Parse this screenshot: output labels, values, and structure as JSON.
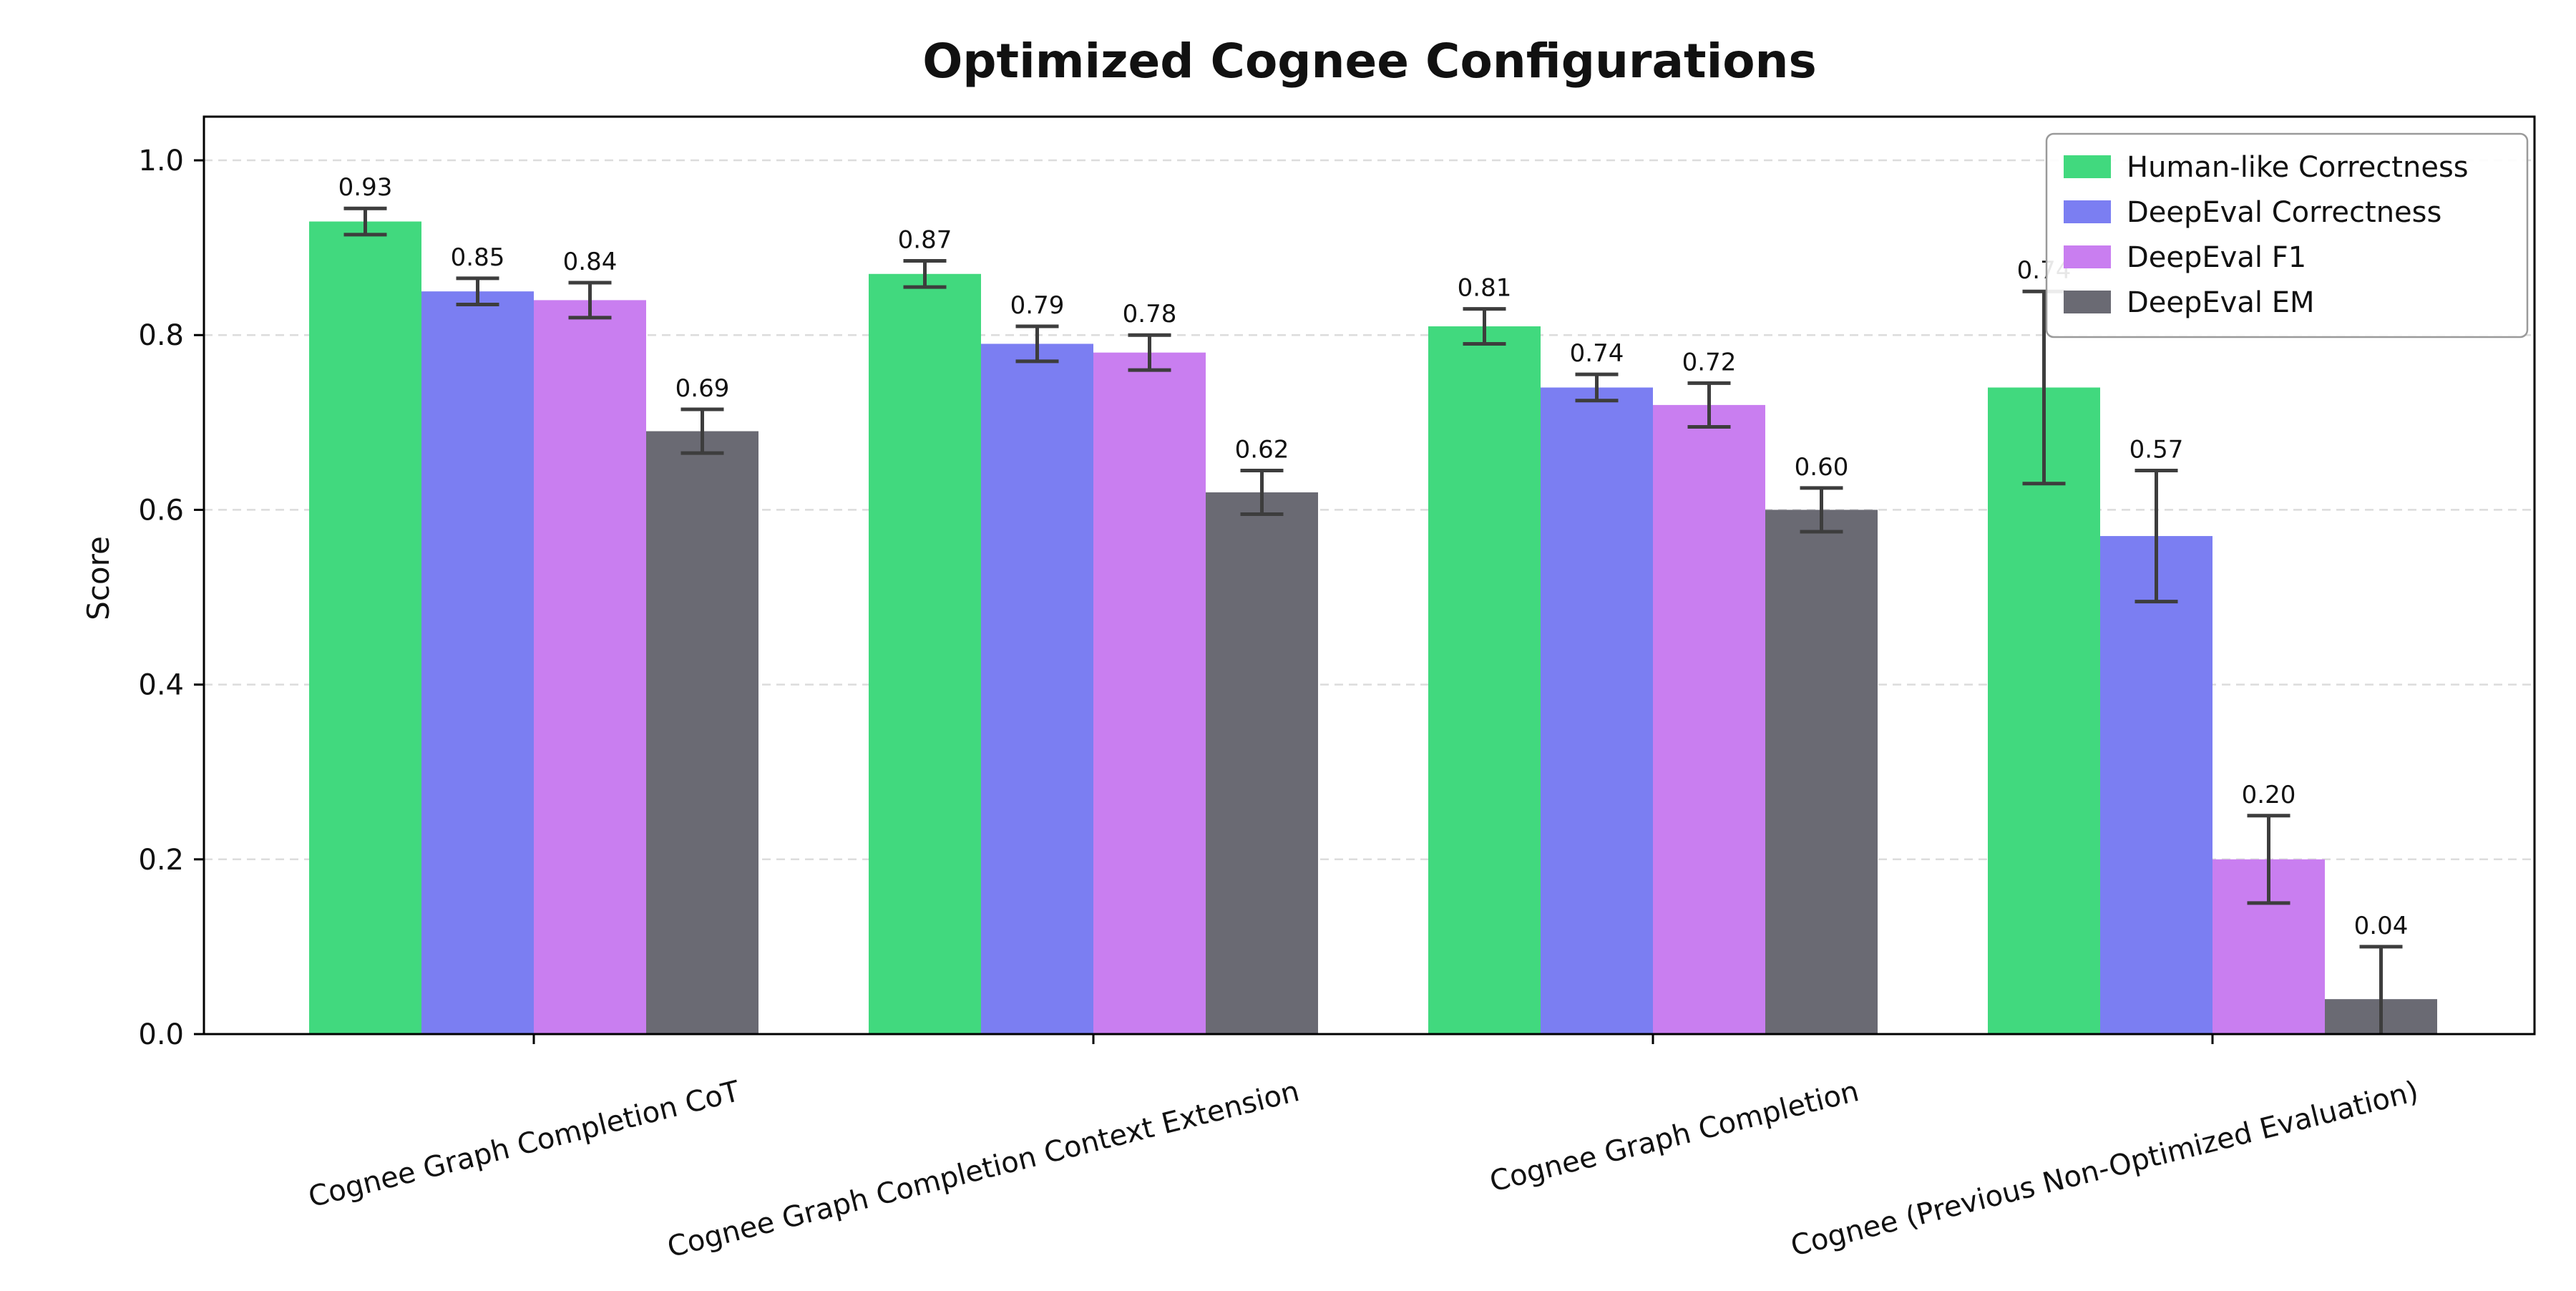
{
  "page": {
    "background": "#ffffff"
  },
  "chart_data": {
    "type": "bar",
    "title": "Optimized Cognee Configurations",
    "xlabel": "",
    "ylabel": "Score",
    "categories": [
      "Cognee Graph Completion CoT",
      "Cognee Graph Completion Context Extension",
      "Cognee Graph Completion",
      "Cognee (Previous Non-Optimized Evaluation)"
    ],
    "series": [
      {
        "name": "Human-like Correctness",
        "color": "#41d97e",
        "values": [
          0.93,
          0.87,
          0.81,
          0.74
        ],
        "errors": [
          0.015,
          0.015,
          0.02,
          0.11
        ]
      },
      {
        "name": "DeepEval Correctness",
        "color": "#7b7ef2",
        "values": [
          0.85,
          0.79,
          0.74,
          0.57
        ],
        "errors": [
          0.015,
          0.02,
          0.015,
          0.075
        ]
      },
      {
        "name": "DeepEval F1",
        "color": "#c97ef0",
        "values": [
          0.84,
          0.78,
          0.72,
          0.2
        ],
        "errors": [
          0.02,
          0.02,
          0.025,
          0.05
        ]
      },
      {
        "name": "DeepEval EM",
        "color": "#6a6a73",
        "values": [
          0.69,
          0.62,
          0.6,
          0.04
        ],
        "errors": [
          0.025,
          0.025,
          0.025,
          0.06
        ]
      }
    ],
    "bar_labels": [
      [
        "0.93",
        "0.87",
        "0.81",
        "0.74"
      ],
      [
        "0.85",
        "0.79",
        "0.74",
        "0.57"
      ],
      [
        "0.84",
        "0.78",
        "0.72",
        "0.20"
      ],
      [
        "0.69",
        "0.62",
        "0.60",
        "0.04"
      ]
    ],
    "yticks": [
      "0.0",
      "0.2",
      "0.4",
      "0.6",
      "0.8",
      "1.0"
    ],
    "ylim": [
      0,
      1.05
    ],
    "grid": "horizontal-dashed",
    "grid_color": "#dcdcdc",
    "error_bar_color": "#3d3d3d",
    "axes_color": "#000000",
    "legend_position": "upper-right",
    "legend_border_color": "#9a9a9a"
  }
}
